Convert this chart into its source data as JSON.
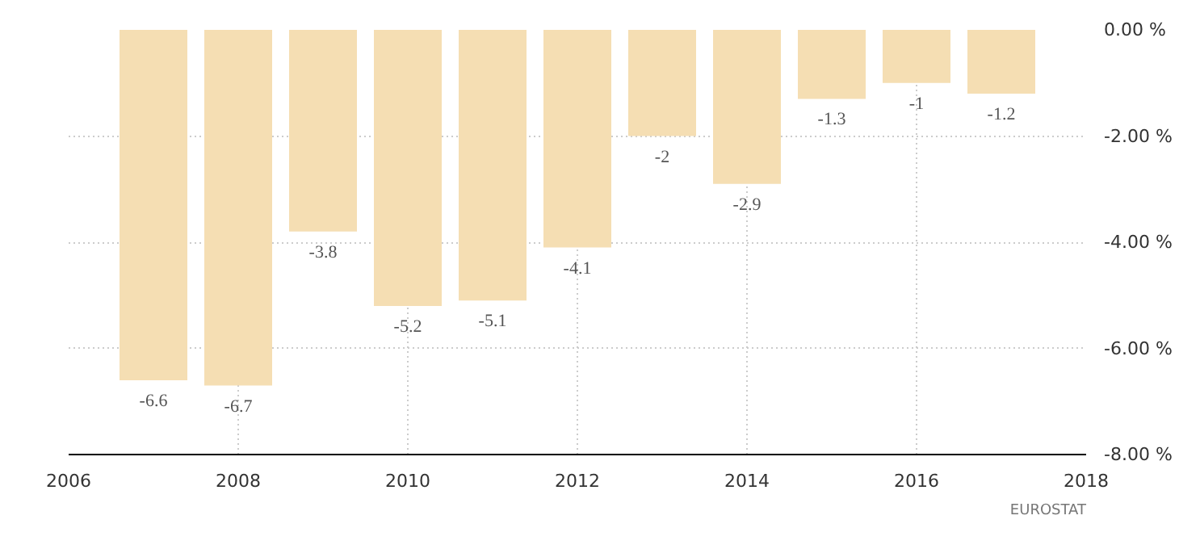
{
  "chart_data": {
    "type": "bar",
    "x": [
      2007,
      2008,
      2009,
      2010,
      2011,
      2012,
      2013,
      2014,
      2015,
      2016,
      2017
    ],
    "values": [
      -6.6,
      -6.7,
      -3.8,
      -5.2,
      -5.1,
      -4.1,
      -2,
      -2.9,
      -1.3,
      -1,
      -1.2
    ],
    "color": "#f5deb3",
    "data_labels": true,
    "xlim": [
      2006,
      2018
    ],
    "xticks": [
      2006,
      2008,
      2010,
      2012,
      2014,
      2016,
      2018
    ],
    "ylim": [
      -8,
      0
    ],
    "yticks": [
      {
        "value": 0,
        "label": "0.00 %"
      },
      {
        "value": -2,
        "label": "-2.00 %"
      },
      {
        "value": -4,
        "label": "-4.00 %"
      },
      {
        "value": -6,
        "label": "-6.00 %"
      },
      {
        "value": -8,
        "label": "-8.00 %"
      }
    ],
    "grid": true,
    "annotations": [
      "EUROSTAT"
    ]
  }
}
